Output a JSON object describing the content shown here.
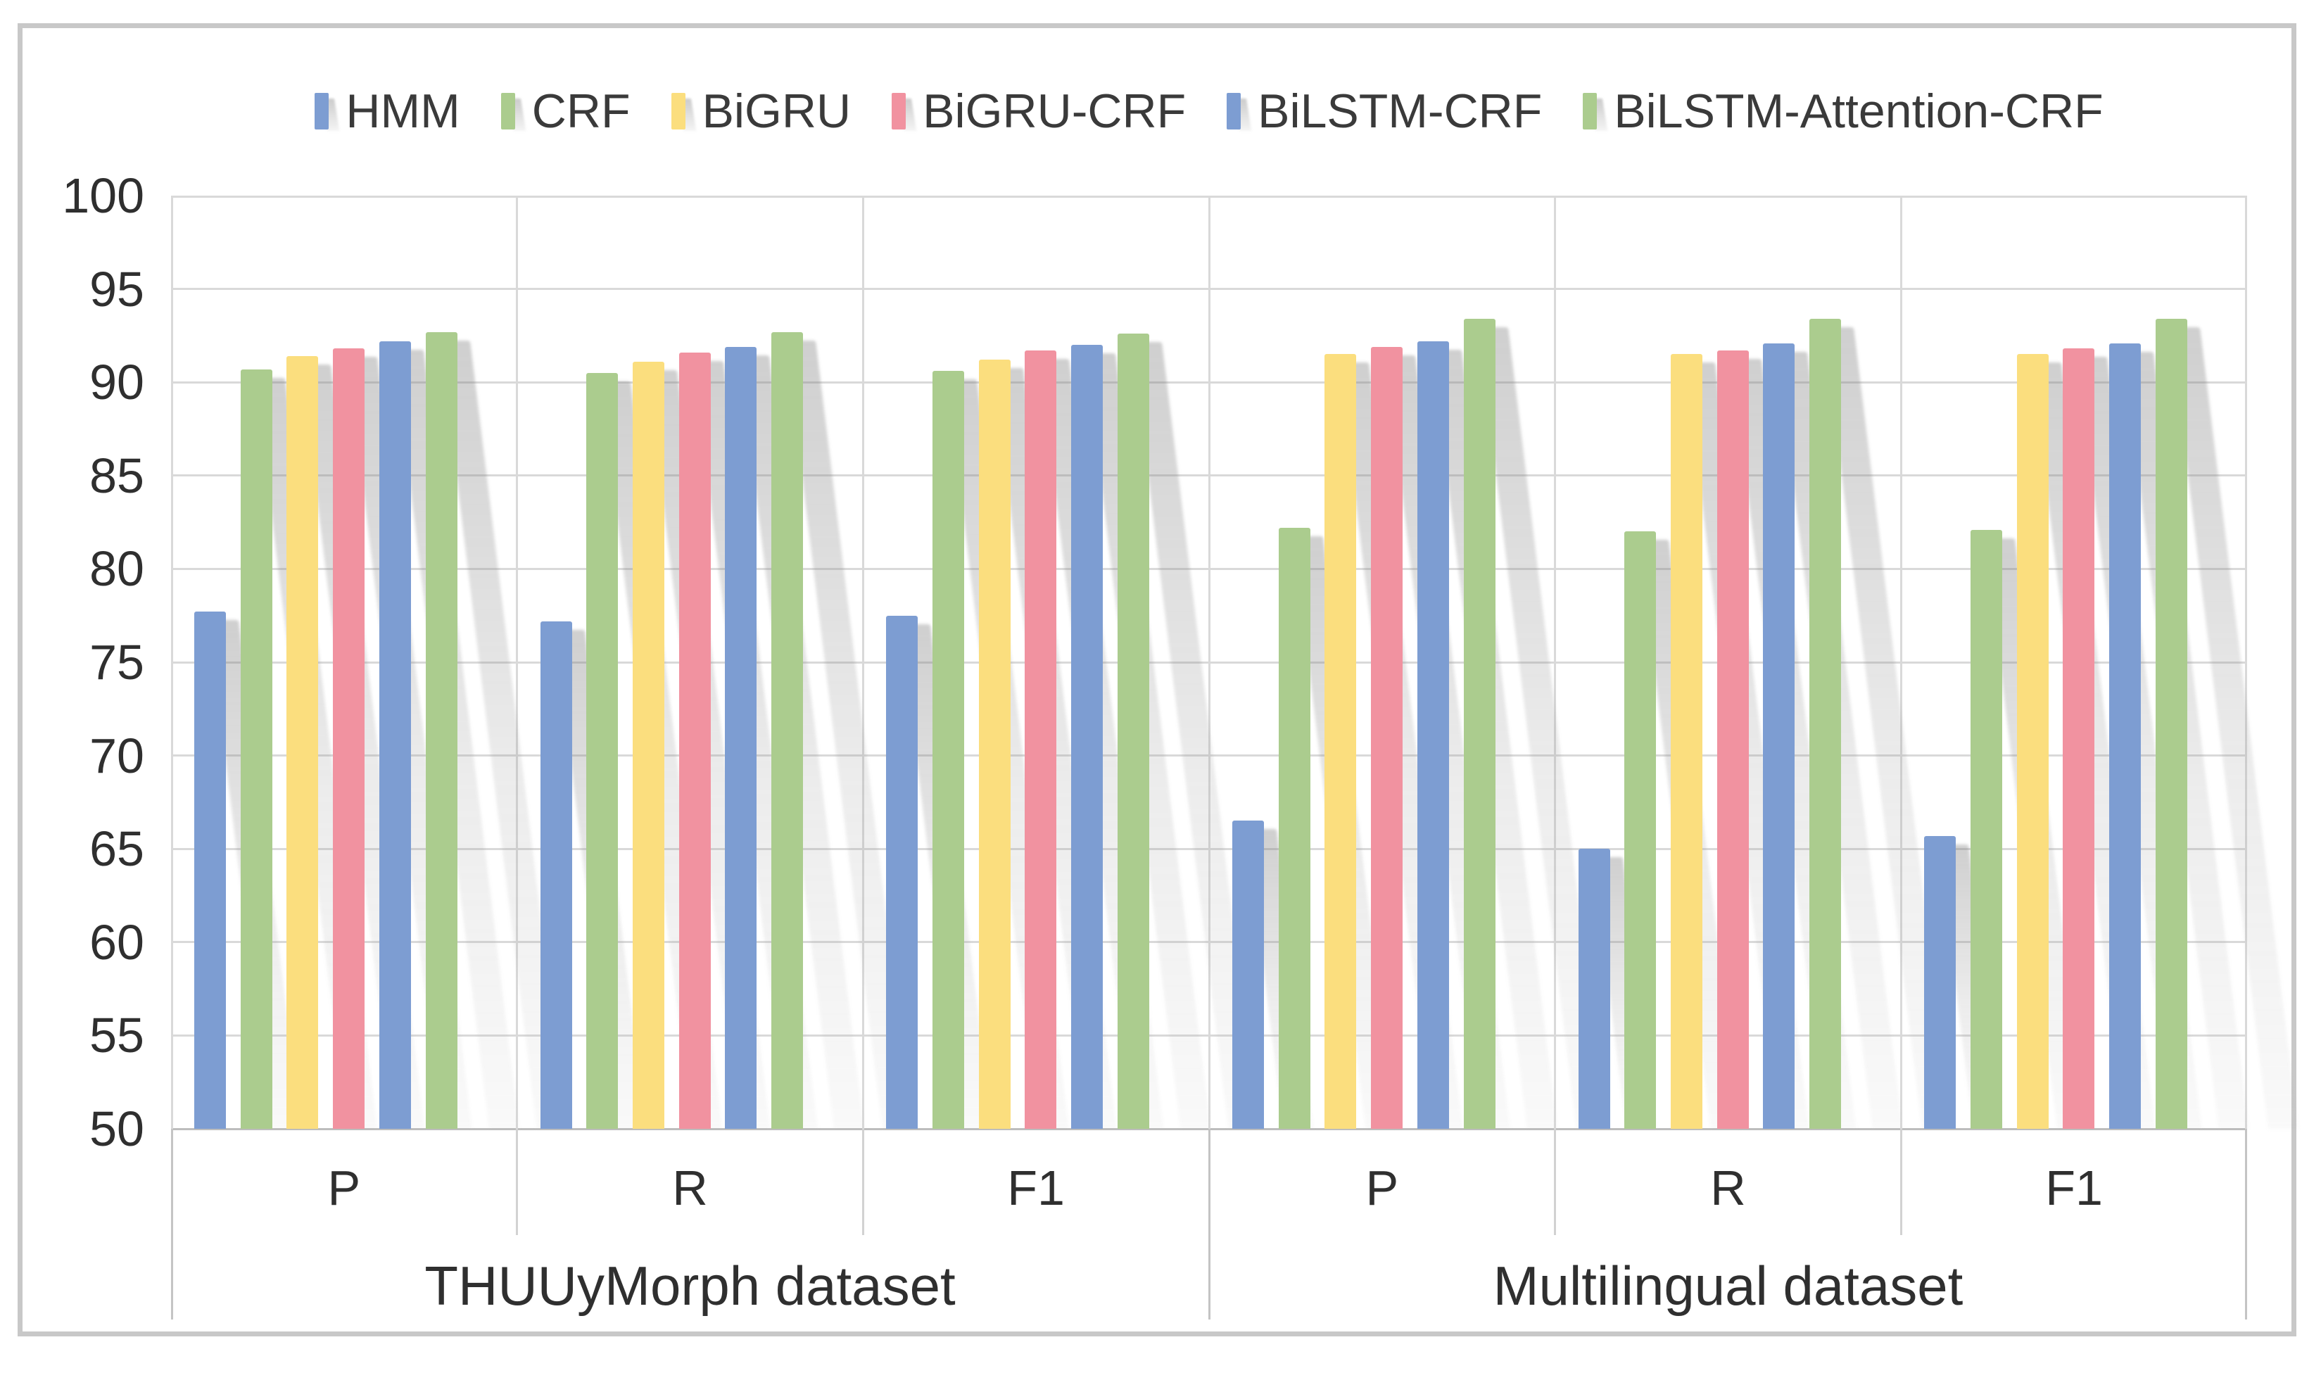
{
  "chart_data": {
    "type": "bar",
    "title": "",
    "ylim": [
      50,
      100
    ],
    "ytick_step": 5,
    "grid": true,
    "legend_position": "top",
    "group_labels": [
      "THUUyMorph dataset",
      "Multilingual dataset"
    ],
    "categories": [
      "P",
      "R",
      "F1",
      "P",
      "R",
      "F1"
    ],
    "series": [
      {
        "name": "HMM",
        "color": "#7D9DD2",
        "values": [
          77.7,
          77.2,
          77.5,
          66.5,
          65.0,
          65.7
        ]
      },
      {
        "name": "CRF",
        "color": "#ABCC8E",
        "values": [
          90.7,
          90.5,
          90.6,
          82.2,
          82.0,
          82.1
        ]
      },
      {
        "name": "BiGRU",
        "color": "#FBDE7E",
        "values": [
          91.4,
          91.1,
          91.2,
          91.5,
          91.5,
          91.5
        ]
      },
      {
        "name": "BiGRU-CRF",
        "color": "#F192A0",
        "values": [
          91.8,
          91.6,
          91.7,
          91.9,
          91.7,
          91.8
        ]
      },
      {
        "name": "BiLSTM-CRF",
        "color": "#7D9DD2",
        "values": [
          92.2,
          91.9,
          92.0,
          92.2,
          92.1,
          92.1
        ]
      },
      {
        "name": "BiLSTM-Attention-CRF",
        "color": "#ABCC8E",
        "values": [
          92.7,
          92.7,
          92.6,
          93.4,
          93.4,
          93.4
        ]
      }
    ],
    "colors": {
      "gridline": "#d9d9d9",
      "axis_line": "#bdbdbd",
      "text": "#2f2f2f",
      "frame_border": "#c8c8c8",
      "background": "#ffffff"
    }
  }
}
